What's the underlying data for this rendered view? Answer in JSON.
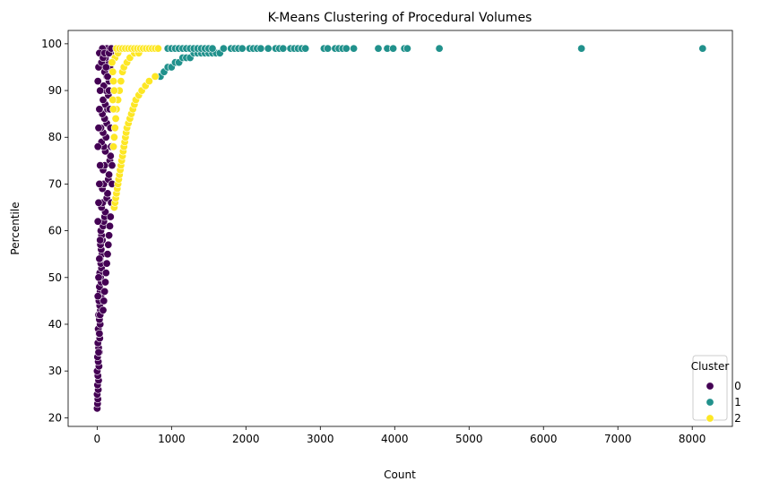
{
  "chart_data": {
    "type": "scatter",
    "title": "K-Means Clustering of Procedural Volumes",
    "xlabel": "Count",
    "ylabel": "Percentile",
    "xlim": [
      -390,
      8540
    ],
    "ylim": [
      18.15,
      102.85
    ],
    "xticks": [
      "0",
      "1000",
      "2000",
      "3000",
      "4000",
      "5000",
      "6000",
      "7000",
      "8000"
    ],
    "yticks": [
      "20",
      "30",
      "40",
      "50",
      "60",
      "70",
      "80",
      "90",
      "100"
    ],
    "grid": false,
    "legend": {
      "title": "Cluster",
      "placement": "lower-right",
      "entries": [
        "0",
        "1",
        "2"
      ]
    },
    "series": [
      {
        "name": "0",
        "color": "#440154",
        "points": [
          [
            0,
            22
          ],
          [
            5,
            23
          ],
          [
            10,
            24
          ],
          [
            0,
            25
          ],
          [
            15,
            26
          ],
          [
            5,
            27
          ],
          [
            20,
            28
          ],
          [
            10,
            29
          ],
          [
            0,
            30
          ],
          [
            25,
            31
          ],
          [
            15,
            32
          ],
          [
            5,
            33
          ],
          [
            30,
            34
          ],
          [
            20,
            35
          ],
          [
            10,
            36
          ],
          [
            35,
            37
          ],
          [
            25,
            38
          ],
          [
            15,
            39
          ],
          [
            40,
            40
          ],
          [
            30,
            41
          ],
          [
            20,
            42
          ],
          [
            45,
            43
          ],
          [
            35,
            44
          ],
          [
            25,
            45
          ],
          [
            50,
            46
          ],
          [
            40,
            47
          ],
          [
            30,
            48
          ],
          [
            55,
            49
          ],
          [
            45,
            50
          ],
          [
            35,
            51
          ],
          [
            60,
            52
          ],
          [
            50,
            53
          ],
          [
            40,
            54
          ],
          [
            65,
            55
          ],
          [
            55,
            56
          ],
          [
            45,
            57
          ],
          [
            70,
            58
          ],
          [
            60,
            59
          ],
          [
            50,
            60
          ],
          [
            80,
            61
          ],
          [
            90,
            62
          ],
          [
            100,
            63
          ],
          [
            110,
            64
          ],
          [
            60,
            65
          ],
          [
            75,
            66
          ],
          [
            130,
            67
          ],
          [
            140,
            68
          ],
          [
            70,
            69
          ],
          [
            90,
            70
          ],
          [
            150,
            71
          ],
          [
            160,
            72
          ],
          [
            80,
            73
          ],
          [
            100,
            74
          ],
          [
            170,
            75
          ],
          [
            180,
            76
          ],
          [
            110,
            77
          ],
          [
            90,
            78
          ],
          [
            60,
            79
          ],
          [
            120,
            80
          ],
          [
            80,
            81
          ],
          [
            50,
            82
          ],
          [
            130,
            83
          ],
          [
            100,
            84
          ],
          [
            70,
            85
          ],
          [
            140,
            86
          ],
          [
            110,
            87
          ],
          [
            80,
            88
          ],
          [
            150,
            89
          ],
          [
            120,
            90
          ],
          [
            90,
            91
          ],
          [
            160,
            92
          ],
          [
            130,
            93
          ],
          [
            100,
            94
          ],
          [
            170,
            95
          ],
          [
            140,
            96
          ],
          [
            110,
            97
          ],
          [
            180,
            98
          ],
          [
            150,
            99
          ],
          [
            200,
            99
          ],
          [
            130,
            99
          ],
          [
            70,
            99
          ],
          [
            30,
            98
          ],
          [
            20,
            95
          ],
          [
            10,
            92
          ],
          [
            40,
            90
          ],
          [
            30,
            86
          ],
          [
            20,
            82
          ],
          [
            10,
            78
          ],
          [
            40,
            74
          ],
          [
            30,
            70
          ],
          [
            20,
            66
          ],
          [
            10,
            62
          ],
          [
            40,
            58
          ],
          [
            30,
            54
          ],
          [
            20,
            50
          ],
          [
            10,
            46
          ],
          [
            40,
            42
          ],
          [
            30,
            38
          ],
          [
            20,
            34
          ],
          [
            60,
            96
          ],
          [
            80,
            97
          ],
          [
            100,
            98
          ],
          [
            160,
            98
          ],
          [
            190,
            99
          ],
          [
            120,
            95
          ],
          [
            140,
            93
          ],
          [
            160,
            90
          ],
          [
            170,
            86
          ],
          [
            180,
            82
          ],
          [
            190,
            78
          ],
          [
            200,
            74
          ],
          [
            200,
            70
          ],
          [
            190,
            66
          ],
          [
            180,
            63
          ],
          [
            170,
            61
          ],
          [
            160,
            59
          ],
          [
            150,
            57
          ],
          [
            140,
            55
          ],
          [
            130,
            53
          ],
          [
            120,
            51
          ],
          [
            110,
            49
          ],
          [
            100,
            47
          ],
          [
            90,
            45
          ],
          [
            80,
            43
          ]
        ]
      },
      {
        "name": "1",
        "color": "#21918c",
        "points": [
          [
            850,
            93
          ],
          [
            900,
            94
          ],
          [
            950,
            95
          ],
          [
            1000,
            95
          ],
          [
            1050,
            96
          ],
          [
            1100,
            96
          ],
          [
            1150,
            97
          ],
          [
            1200,
            97
          ],
          [
            1250,
            97
          ],
          [
            1300,
            98
          ],
          [
            1350,
            98
          ],
          [
            1400,
            98
          ],
          [
            1450,
            98
          ],
          [
            1500,
            98
          ],
          [
            1550,
            98
          ],
          [
            1600,
            98
          ],
          [
            1650,
            98
          ],
          [
            950,
            99
          ],
          [
            1000,
            99
          ],
          [
            1050,
            99
          ],
          [
            1100,
            99
          ],
          [
            1150,
            99
          ],
          [
            1200,
            99
          ],
          [
            1250,
            99
          ],
          [
            1300,
            99
          ],
          [
            1350,
            99
          ],
          [
            1400,
            99
          ],
          [
            1450,
            99
          ],
          [
            1500,
            99
          ],
          [
            1550,
            99
          ],
          [
            1700,
            99
          ],
          [
            1800,
            99
          ],
          [
            1850,
            99
          ],
          [
            1900,
            99
          ],
          [
            1950,
            99
          ],
          [
            2050,
            99
          ],
          [
            2100,
            99
          ],
          [
            2150,
            99
          ],
          [
            2200,
            99
          ],
          [
            2300,
            99
          ],
          [
            2400,
            99
          ],
          [
            2450,
            99
          ],
          [
            2500,
            99
          ],
          [
            2600,
            99
          ],
          [
            2650,
            99
          ],
          [
            2700,
            99
          ],
          [
            2750,
            99
          ],
          [
            2800,
            99
          ],
          [
            3050,
            99
          ],
          [
            3100,
            99
          ],
          [
            3200,
            99
          ],
          [
            3250,
            99
          ],
          [
            3300,
            99
          ],
          [
            3350,
            99
          ],
          [
            3450,
            99
          ],
          [
            3780,
            99
          ],
          [
            3900,
            99
          ],
          [
            3980,
            99
          ],
          [
            4130,
            99
          ],
          [
            4170,
            99
          ],
          [
            4600,
            99
          ],
          [
            6510,
            99
          ],
          [
            8140,
            99
          ]
        ]
      },
      {
        "name": "2",
        "color": "#fde725",
        "points": [
          [
            230,
            65
          ],
          [
            240,
            66
          ],
          [
            250,
            67
          ],
          [
            260,
            68
          ],
          [
            270,
            69
          ],
          [
            280,
            70
          ],
          [
            290,
            71
          ],
          [
            300,
            72
          ],
          [
            310,
            73
          ],
          [
            320,
            74
          ],
          [
            330,
            75
          ],
          [
            340,
            76
          ],
          [
            350,
            77
          ],
          [
            360,
            78
          ],
          [
            370,
            79
          ],
          [
            380,
            80
          ],
          [
            390,
            81
          ],
          [
            400,
            82
          ],
          [
            420,
            83
          ],
          [
            440,
            84
          ],
          [
            460,
            85
          ],
          [
            480,
            86
          ],
          [
            500,
            87
          ],
          [
            520,
            88
          ],
          [
            560,
            89
          ],
          [
            600,
            90
          ],
          [
            650,
            91
          ],
          [
            700,
            92
          ],
          [
            780,
            93
          ],
          [
            220,
            78
          ],
          [
            230,
            80
          ],
          [
            240,
            82
          ],
          [
            250,
            84
          ],
          [
            260,
            86
          ],
          [
            280,
            88
          ],
          [
            300,
            90
          ],
          [
            320,
            92
          ],
          [
            340,
            94
          ],
          [
            360,
            95
          ],
          [
            400,
            96
          ],
          [
            440,
            97
          ],
          [
            500,
            98
          ],
          [
            560,
            98
          ],
          [
            240,
            97
          ],
          [
            280,
            98
          ],
          [
            260,
            99
          ],
          [
            300,
            99
          ],
          [
            340,
            99
          ],
          [
            380,
            99
          ],
          [
            420,
            99
          ],
          [
            460,
            99
          ],
          [
            500,
            99
          ],
          [
            540,
            99
          ],
          [
            580,
            99
          ],
          [
            620,
            99
          ],
          [
            660,
            99
          ],
          [
            700,
            99
          ],
          [
            740,
            99
          ],
          [
            780,
            99
          ],
          [
            820,
            99
          ],
          [
            200,
            96
          ],
          [
            210,
            94
          ],
          [
            220,
            92
          ],
          [
            230,
            90
          ],
          [
            210,
            88
          ],
          [
            220,
            86
          ]
        ]
      }
    ]
  }
}
